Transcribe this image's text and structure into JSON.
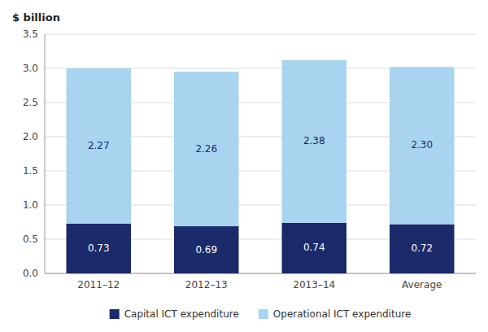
{
  "chart_data": {
    "type": "bar",
    "stacked": true,
    "y_label": "$ billion",
    "categories": [
      "2011–12",
      "2012–13",
      "2013–14",
      "Average"
    ],
    "series": [
      {
        "name": "Capital ICT expenditure",
        "color": "#1b2a6b",
        "values": [
          0.73,
          0.69,
          0.74,
          0.72
        ]
      },
      {
        "name": "Operational ICT expenditure",
        "color": "#a8d4f0",
        "values": [
          2.27,
          2.26,
          2.38,
          2.3
        ],
        "value_labels": [
          "2.27",
          "2.26",
          "2.38",
          "2.30"
        ]
      }
    ],
    "ylim": [
      0,
      3.5
    ],
    "yticks": [
      {
        "value": 0,
        "label": "0.0"
      },
      0.5,
      {
        "value": 1,
        "label": "1.0"
      },
      1.5,
      {
        "value": 2,
        "label": "2.0"
      },
      2.5,
      {
        "value": 3,
        "label": "3.0"
      },
      3.5
    ],
    "grid": true,
    "legend": "bottom",
    "data_labels": true
  }
}
